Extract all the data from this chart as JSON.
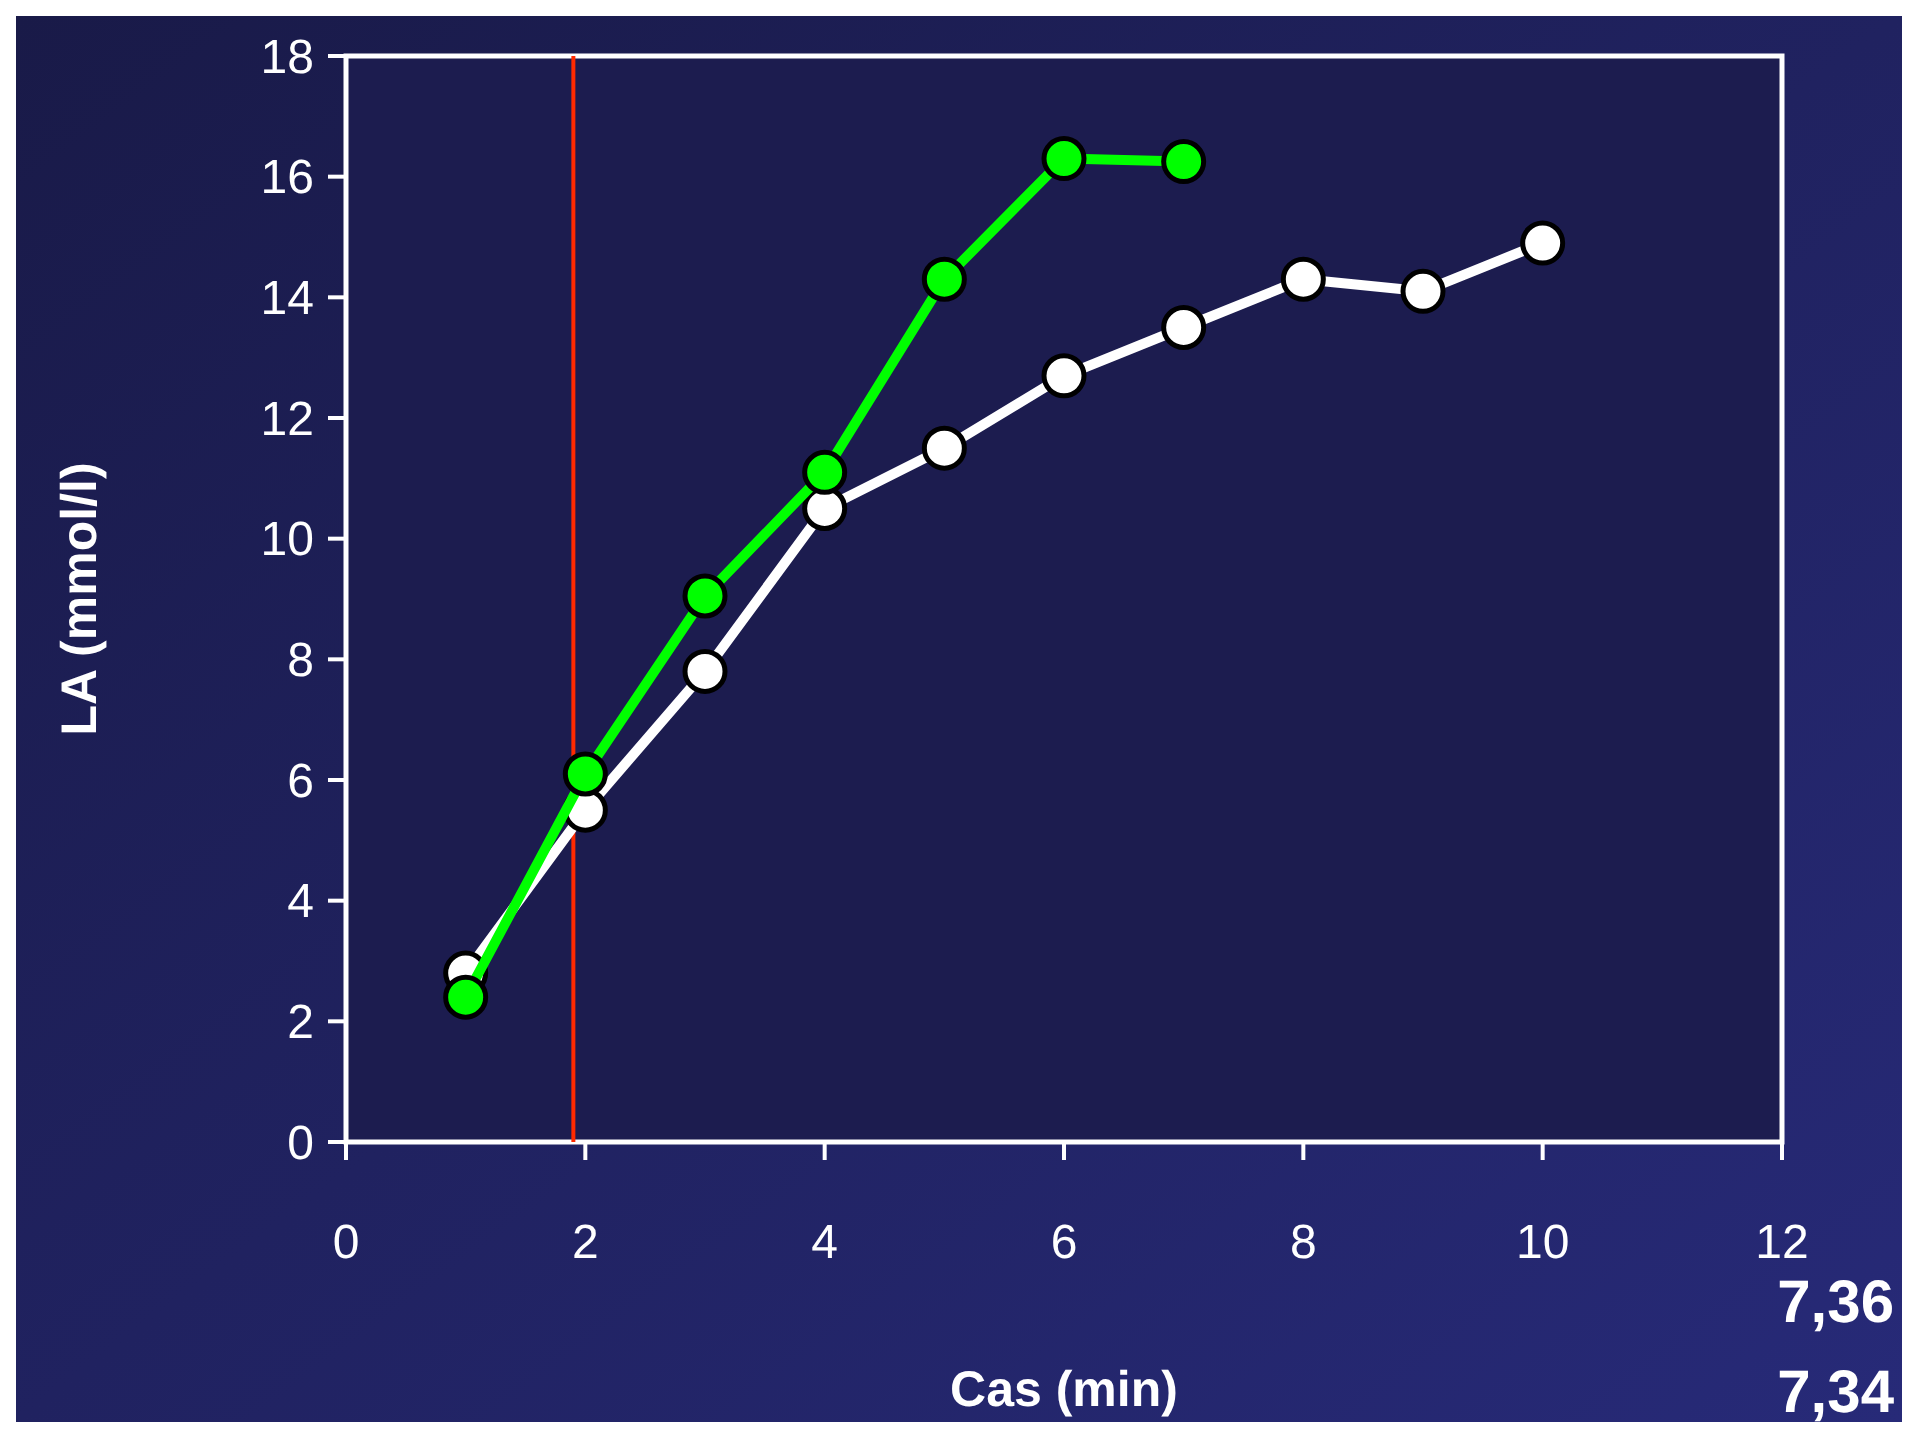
{
  "chart_data": {
    "type": "line",
    "xlabel": "Cas (min)",
    "ylabel": "LA (mmol/l)",
    "x": [
      1,
      2,
      3,
      4,
      5,
      6,
      7,
      8,
      9,
      10
    ],
    "series": [
      {
        "color": "#ffffff",
        "values": [
          2.8,
          5.5,
          7.8,
          10.5,
          11.5,
          12.7,
          13.5,
          14.3,
          14.1,
          14.9
        ]
      },
      {
        "color": "#00ff00",
        "values": [
          2.4,
          6.1,
          9.05,
          11.1,
          14.3,
          16.3,
          16.25,
          null,
          null,
          null
        ]
      }
    ],
    "xlim": [
      0,
      12
    ],
    "xticks": [
      0,
      2,
      4,
      6,
      8,
      10,
      12
    ],
    "ylim": [
      0,
      18
    ],
    "yticks": [
      0,
      2,
      4,
      6,
      8,
      10,
      12,
      14,
      16,
      18
    ],
    "ref_lines": [
      {
        "axis": "x",
        "value": 1.9,
        "color": "#ff2a00"
      }
    ],
    "marker": "circle",
    "line_style": "solid",
    "grid": false,
    "annotations": [
      "7,36",
      "7,34"
    ]
  }
}
